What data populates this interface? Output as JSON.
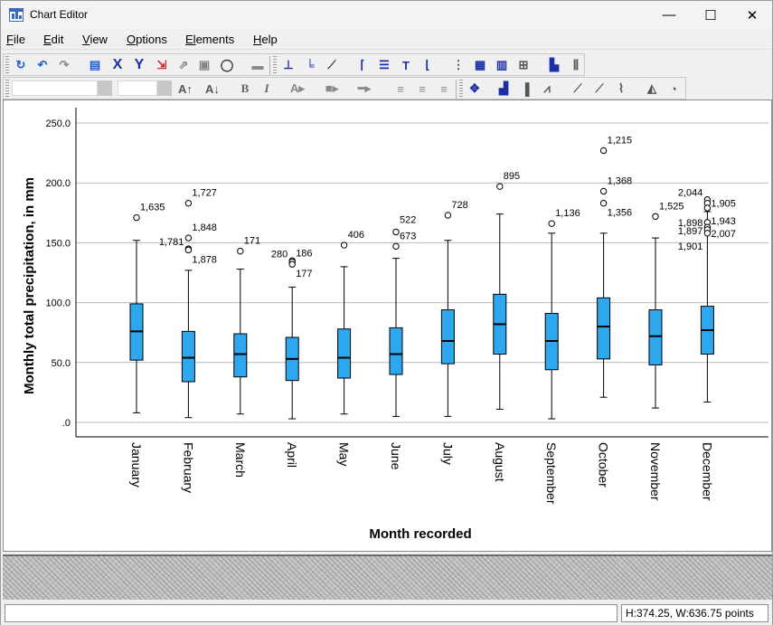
{
  "window": {
    "title": "Chart Editor",
    "minimize": "—",
    "maximize": "☐",
    "close": "✕"
  },
  "menubar": {
    "items": [
      {
        "label": "File",
        "key": "F",
        "rest": "ile"
      },
      {
        "label": "Edit",
        "key": "E",
        "rest": "dit"
      },
      {
        "label": "View",
        "key": "V",
        "rest": "iew"
      },
      {
        "label": "Options",
        "key": "O",
        "rest": "ptions"
      },
      {
        "label": "Elements",
        "key": "El",
        "rest": "ements"
      },
      {
        "label": "Help",
        "key": "H",
        "rest": "elp"
      }
    ]
  },
  "toolbar1": {
    "icons": [
      "undo-redo-icon",
      "undo-icon",
      "redo-icon",
      "properties-icon",
      "x-axis-icon",
      "y-axis-icon",
      "scale-icon",
      "transform-icon",
      "delete-icon",
      "lasso-icon",
      "group-icon",
      "axis-l-icon",
      "axis-both-icon",
      "axis-diagonal-icon",
      "frame-icon",
      "legend-icon",
      "textbox-icon",
      "footnote-icon",
      "gridlines-minor-icon",
      "gridlines-major-icon",
      "table-icon",
      "category-icon",
      "bar-sort-icon",
      "bar-grid-icon"
    ]
  },
  "toolbar2": {
    "font_name_value": "",
    "font_size_value": "",
    "bold_label": "B",
    "italic_label": "I",
    "icons": [
      "grow-font-icon",
      "shrink-font-icon",
      "bold-icon",
      "italic-icon",
      "text-color-icon",
      "fill-color-icon",
      "line-style-icon",
      "align-left-icon",
      "align-center-icon",
      "align-right-icon",
      "move-chart-icon",
      "bar-chart-icon",
      "bar-chart-alt-icon",
      "line-chart-icon",
      "scatter-icon",
      "scatter-alt-icon",
      "area-line-icon",
      "histogram-icon",
      "pie-icon"
    ]
  },
  "status": {
    "left_text": "",
    "size_text": "H:374.25, W:636.75 points"
  },
  "chart_data": {
    "type": "boxplot",
    "ylabel": "Monthly total precipitation, in mm",
    "xlabel": "Month recorded",
    "ylim": [
      0,
      250
    ],
    "yticks": [
      ".0",
      "50.0",
      "100.0",
      "150.0",
      "200.0",
      "250.0"
    ],
    "ytick_values": [
      0,
      50,
      100,
      150,
      200,
      250
    ],
    "grid": true,
    "box_color": "#2da8ef",
    "categories": [
      "January",
      "February",
      "March",
      "April",
      "May",
      "June",
      "July",
      "August",
      "September",
      "October",
      "November",
      "December"
    ],
    "boxes": [
      {
        "min": 8,
        "q1": 52,
        "median": 76,
        "q3": 99,
        "max": 152
      },
      {
        "min": 4,
        "q1": 34,
        "median": 54,
        "q3": 76,
        "max": 127
      },
      {
        "min": 7,
        "q1": 38,
        "median": 57,
        "q3": 74,
        "max": 128
      },
      {
        "min": 3,
        "q1": 35,
        "median": 53,
        "q3": 71,
        "max": 113
      },
      {
        "min": 7,
        "q1": 37,
        "median": 54,
        "q3": 78,
        "max": 130
      },
      {
        "min": 5,
        "q1": 40,
        "median": 57,
        "q3": 79,
        "max": 137
      },
      {
        "min": 5,
        "q1": 49,
        "median": 68,
        "q3": 94,
        "max": 152
      },
      {
        "min": 11,
        "q1": 57,
        "median": 82,
        "q3": 107,
        "max": 174
      },
      {
        "min": 3,
        "q1": 44,
        "median": 68,
        "q3": 91,
        "max": 158
      },
      {
        "min": 21,
        "q1": 53,
        "median": 80,
        "q3": 104,
        "max": 158
      },
      {
        "min": 12,
        "q1": 48,
        "median": 72,
        "q3": 94,
        "max": 154
      },
      {
        "min": 17,
        "q1": 57,
        "median": 77,
        "q3": 97,
        "max": 176
      }
    ],
    "outliers": [
      {
        "month": 0,
        "value": 171,
        "label": "1,635",
        "label_side": "right",
        "label_dy": -8
      },
      {
        "month": 1,
        "value": 183,
        "label": "1,727",
        "label_side": "right",
        "label_dy": -8
      },
      {
        "month": 1,
        "value": 154,
        "label": "1,848",
        "label_side": "right",
        "label_dy": -8
      },
      {
        "month": 1,
        "value": 145,
        "label": "1,781",
        "label_side": "left",
        "label_dy": -4
      },
      {
        "month": 1,
        "value": 144,
        "label": "1,878",
        "label_side": "right",
        "label_dy": 14
      },
      {
        "month": 2,
        "value": 143,
        "label": "171",
        "label_side": "right",
        "label_dy": -8
      },
      {
        "month": 3,
        "value": 135,
        "label": "280",
        "label_side": "left",
        "label_dy": -4
      },
      {
        "month": 3,
        "value": 134,
        "label": "186",
        "label_side": "right",
        "label_dy": -6
      },
      {
        "month": 3,
        "value": 132,
        "label": "177",
        "label_side": "right",
        "label_dy": 14
      },
      {
        "month": 4,
        "value": 148,
        "label": "406",
        "label_side": "right",
        "label_dy": -8
      },
      {
        "month": 5,
        "value": 159,
        "label": "522",
        "label_side": "right",
        "label_dy": -10
      },
      {
        "month": 5,
        "value": 147,
        "label": "673",
        "label_side": "right",
        "label_dy": -8
      },
      {
        "month": 6,
        "value": 173,
        "label": "728",
        "label_side": "right",
        "label_dy": -8
      },
      {
        "month": 7,
        "value": 197,
        "label": "895",
        "label_side": "right",
        "label_dy": -8
      },
      {
        "month": 8,
        "value": 166,
        "label": "1,136",
        "label_side": "right",
        "label_dy": -8
      },
      {
        "month": 9,
        "value": 227,
        "label": "1,215",
        "label_side": "right",
        "label_dy": -8
      },
      {
        "month": 9,
        "value": 193,
        "label": "1,368",
        "label_side": "right",
        "label_dy": -8
      },
      {
        "month": 9,
        "value": 183,
        "label": "1,356",
        "label_side": "right",
        "label_dy": 14
      },
      {
        "month": 10,
        "value": 172,
        "label": "1,525",
        "label_side": "right",
        "label_dy": -8
      },
      {
        "month": 11,
        "value": 186,
        "label": "2,044",
        "label_side": "left",
        "label_dy": -4
      },
      {
        "month": 11,
        "value": 183,
        "label": "1,905",
        "label_side": "right",
        "label_dy": 4
      },
      {
        "month": 11,
        "value": 179,
        "label": "1,943",
        "label_side": "right",
        "label_dy": 18
      },
      {
        "month": 11,
        "value": 167,
        "label": "1,898",
        "label_side": "left",
        "label_dy": 4
      },
      {
        "month": 11,
        "value": 163,
        "label": "1,897",
        "label_side": "left",
        "label_dy": 8
      },
      {
        "month": 11,
        "value": 161,
        "label": "2,007",
        "label_side": "right",
        "label_dy": 8
      },
      {
        "month": 11,
        "value": 158,
        "label": "1,901",
        "label_side": "left",
        "label_dy": 18
      }
    ]
  }
}
